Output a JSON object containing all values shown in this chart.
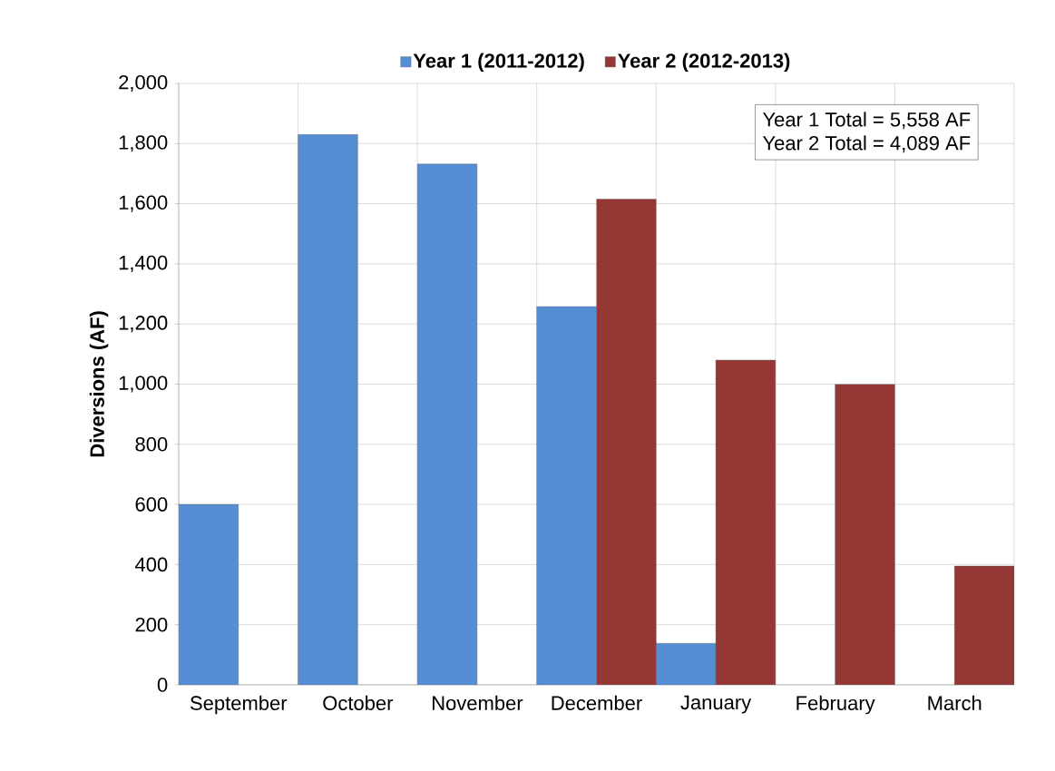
{
  "chart_data": {
    "type": "bar",
    "ylabel": "Diversions (AF)",
    "categories": [
      "September",
      "October",
      "November",
      "December",
      "January",
      "February",
      "March"
    ],
    "series": [
      {
        "name": "Year 1 (2011-2012)",
        "color": "#558ed5",
        "values": [
          600,
          1830,
          1732,
          1258,
          138,
          null,
          null
        ]
      },
      {
        "name": "Year 2 (2012-2013)",
        "color": "#953735",
        "values": [
          null,
          null,
          null,
          1615,
          1080,
          999,
          395
        ]
      }
    ],
    "ylim": [
      0,
      2000
    ],
    "yticks": [
      {
        "value": 0,
        "label": "0"
      },
      {
        "value": 200,
        "label": "200"
      },
      {
        "value": 400,
        "label": "400"
      },
      {
        "value": 600,
        "label": "600"
      },
      {
        "value": 800,
        "label": "800"
      },
      {
        "value": 1000,
        "label": "1,000"
      },
      {
        "value": 1200,
        "label": "1,200"
      },
      {
        "value": 1400,
        "label": "1,400"
      },
      {
        "value": 1600,
        "label": "1,600"
      },
      {
        "value": 1800,
        "label": "1,800"
      },
      {
        "value": 2000,
        "label": "2,000"
      }
    ],
    "grid": true,
    "legend": "top",
    "annotations": [
      "Year 1 Total = 5,558 AF",
      "Year 2 Total = 4,089 AF"
    ]
  }
}
